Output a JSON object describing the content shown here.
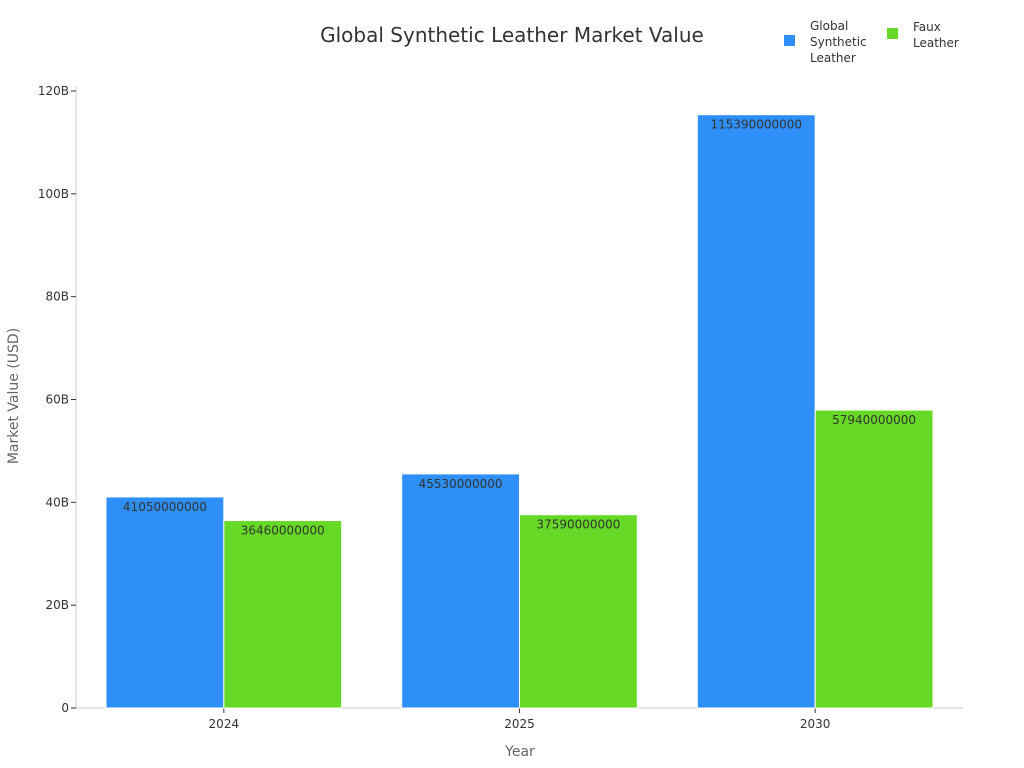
{
  "chart_data": {
    "type": "bar",
    "title": "Global Synthetic Leather Market Value",
    "xlabel": "Year",
    "ylabel": "Market Value (USD)",
    "categories": [
      "2024",
      "2025",
      "2030"
    ],
    "ylim": [
      0,
      120000000000
    ],
    "yticks": [
      0,
      20000000000,
      40000000000,
      60000000000,
      80000000000,
      100000000000,
      120000000000
    ],
    "ytick_labels": [
      "0",
      "20B",
      "40B",
      "60B",
      "80B",
      "100B",
      "120B"
    ],
    "grid": false,
    "legend_position": "top-right",
    "series": [
      {
        "name": "Global Synthetic Leather",
        "legend_lines": [
          "Global",
          "Synthetic",
          "Leather"
        ],
        "color": "#2f8ff8",
        "values": [
          41050000000,
          45530000000,
          115390000000
        ],
        "labels": [
          "41050000000",
          "45530000000",
          "115390000000"
        ]
      },
      {
        "name": "Faux Leather",
        "legend_lines": [
          "Faux",
          "Leather"
        ],
        "color": "#66d926",
        "values": [
          36460000000,
          37590000000,
          57940000000
        ],
        "labels": [
          "36460000000",
          "37590000000",
          "57940000000"
        ]
      }
    ]
  }
}
